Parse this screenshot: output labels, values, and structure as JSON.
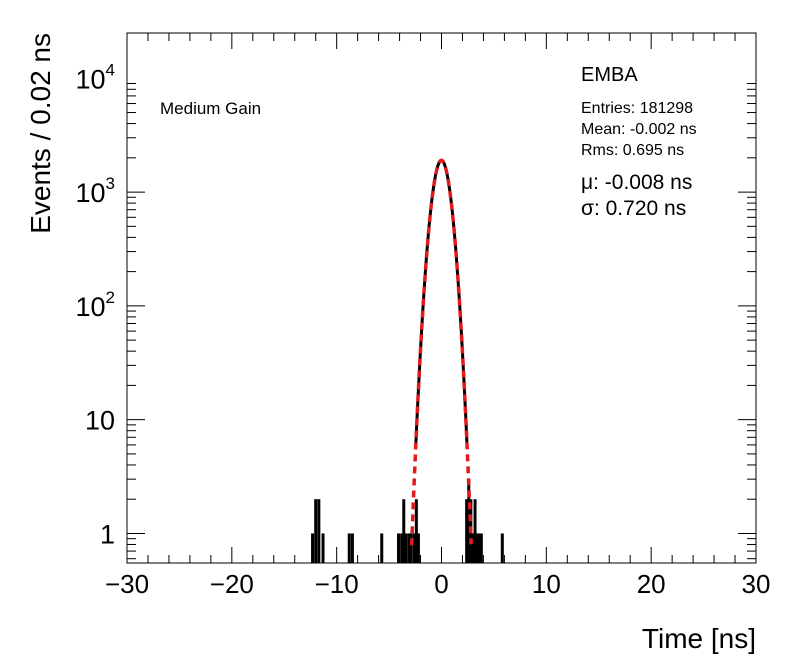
{
  "chart_data": {
    "type": "histogram",
    "title": "",
    "xlabel": "Time [ns]",
    "ylabel": "Events / 0.02 ns",
    "xlim": [
      -30,
      30
    ],
    "ylim": [
      0.55,
      25000
    ],
    "yscale": "log",
    "x_ticks": [
      -30,
      -20,
      -10,
      0,
      10,
      20,
      30
    ],
    "x_tick_labels": [
      "−30",
      "−20",
      "−10",
      "0",
      "10",
      "20",
      "30"
    ],
    "y_ticks": [
      {
        "value": 1,
        "label": "1"
      },
      {
        "value": 10,
        "label": "10"
      },
      {
        "value": 100,
        "base": "10",
        "exp": "2"
      },
      {
        "value": 1000,
        "base": "10",
        "exp": "3"
      },
      {
        "value": 10000,
        "base": "10",
        "exp": "4"
      }
    ],
    "annotations": {
      "gain": "Medium Gain",
      "partition": "EMBA",
      "entries": "Entries: 181298",
      "mean": "Mean: -0.002 ns",
      "rms": "Rms: 0.695 ns",
      "mu": "μ: -0.008 ns",
      "sigma": "σ: 0.720 ns"
    },
    "fit": {
      "function": "gaussian",
      "color": "#e31a1c",
      "style": "dashed",
      "amplitude": 1900,
      "mu": -0.008,
      "sigma": 0.72
    },
    "histogram_color": "#000000",
    "bins": [
      {
        "x": -12.3,
        "y": 1
      },
      {
        "x": -12.0,
        "y": 2
      },
      {
        "x": -11.7,
        "y": 2
      },
      {
        "x": -11.3,
        "y": 1
      },
      {
        "x": -8.8,
        "y": 1
      },
      {
        "x": -8.5,
        "y": 1
      },
      {
        "x": -5.7,
        "y": 1
      },
      {
        "x": -4.1,
        "y": 1
      },
      {
        "x": -3.8,
        "y": 1
      },
      {
        "x": -3.6,
        "y": 2
      },
      {
        "x": -3.4,
        "y": 1
      },
      {
        "x": -3.1,
        "y": 1
      },
      {
        "x": -2.9,
        "y": 1
      },
      {
        "x": -2.6,
        "y": 1
      },
      {
        "x": -2.4,
        "y": 2
      },
      {
        "x": -2.2,
        "y": 1
      },
      {
        "x": 2.4,
        "y": 2
      },
      {
        "x": 2.6,
        "y": 3
      },
      {
        "x": 2.8,
        "y": 2
      },
      {
        "x": 3.0,
        "y": 1
      },
      {
        "x": 3.2,
        "y": 2
      },
      {
        "x": 3.4,
        "y": 1
      },
      {
        "x": 3.6,
        "y": 1
      },
      {
        "x": 3.8,
        "y": 1
      },
      {
        "x": 5.8,
        "y": 1
      }
    ]
  }
}
